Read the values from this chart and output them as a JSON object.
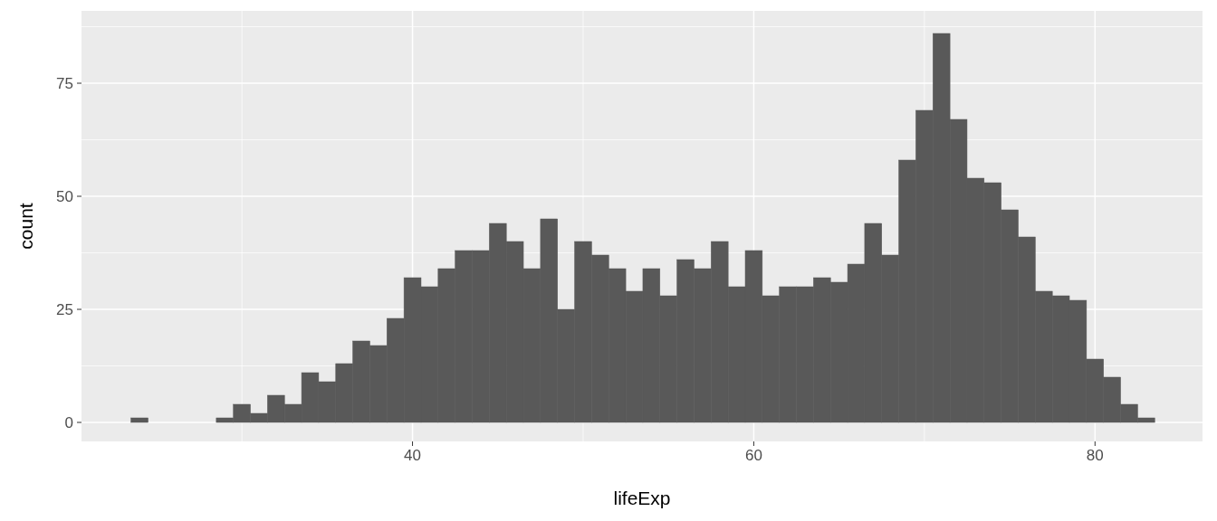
{
  "chart_data": {
    "type": "histogram",
    "xlabel": "lifeExp",
    "ylabel": "count",
    "color": "#595959",
    "bins": [
      23.5,
      24.5,
      25.5,
      26.5,
      27.5,
      28.5,
      29.5,
      30.5,
      31.5,
      32.5,
      33.5,
      34.5,
      35.5,
      36.5,
      37.5,
      38.5,
      39.5,
      40.5,
      41.5,
      42.5,
      43.5,
      44.5,
      45.5,
      46.5,
      47.5,
      48.5,
      49.5,
      50.5,
      51.5,
      52.5,
      53.5,
      54.5,
      55.5,
      56.5,
      57.5,
      58.5,
      59.5,
      60.5,
      61.5,
      62.5,
      63.5,
      64.5,
      65.5,
      66.5,
      67.5,
      68.5,
      69.5,
      70.5,
      71.5,
      72.5,
      73.5,
      74.5,
      75.5,
      76.5,
      77.5,
      78.5,
      79.5,
      80.5,
      81.5,
      82.5,
      83.5
    ],
    "values": [
      1,
      0,
      0,
      0,
      0,
      1,
      4,
      2,
      6,
      4,
      11,
      9,
      13,
      18,
      17,
      23,
      32,
      30,
      34,
      38,
      38,
      44,
      40,
      34,
      45,
      25,
      40,
      37,
      34,
      29,
      34,
      28,
      36,
      34,
      40,
      30,
      38,
      28,
      30,
      30,
      32,
      31,
      35,
      44,
      37,
      58,
      69,
      86,
      67,
      54,
      53,
      47,
      41,
      29,
      28,
      27,
      14,
      10,
      4,
      1
    ],
    "xlim": [
      20.6,
      86.3
    ],
    "ylim": [
      -4.2,
      91
    ],
    "xticks": [
      40,
      60,
      80
    ],
    "yticks": [
      0,
      25,
      50,
      75
    ],
    "grid": true
  }
}
